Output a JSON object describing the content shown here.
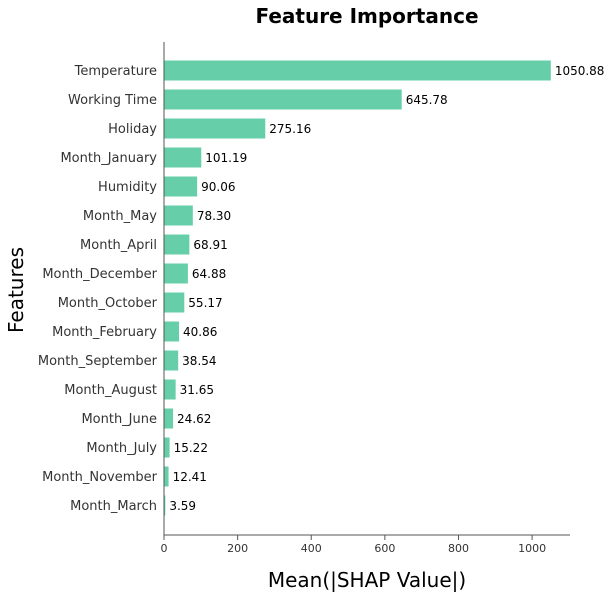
{
  "chart_data": {
    "type": "bar",
    "orientation": "horizontal",
    "title": "Feature Importance",
    "xlabel": "Mean(|SHAP Value|)",
    "ylabel": "Features",
    "categories": [
      "Temperature",
      "Working Time",
      "Holiday",
      "Month_January",
      "Humidity",
      "Month_May",
      "Month_April",
      "Month_December",
      "Month_October",
      "Month_February",
      "Month_September",
      "Month_August",
      "Month_June",
      "Month_July",
      "Month_November",
      "Month_March"
    ],
    "values": [
      1050.88,
      645.78,
      275.16,
      101.19,
      90.06,
      78.3,
      68.91,
      64.88,
      55.17,
      40.86,
      38.54,
      31.65,
      24.62,
      15.22,
      12.41,
      3.59
    ],
    "value_labels": [
      "1050.88",
      "645.78",
      "275.16",
      "101.19",
      "90.06",
      "78.30",
      "68.91",
      "64.88",
      "55.17",
      "40.86",
      "38.54",
      "31.65",
      "24.62",
      "15.22",
      "12.41",
      "3.59"
    ],
    "xticks": [
      0,
      200,
      400,
      600,
      800,
      1000
    ],
    "xlim": [
      0,
      1103
    ],
    "bar_color": "#66cfa9",
    "grid": false
  }
}
